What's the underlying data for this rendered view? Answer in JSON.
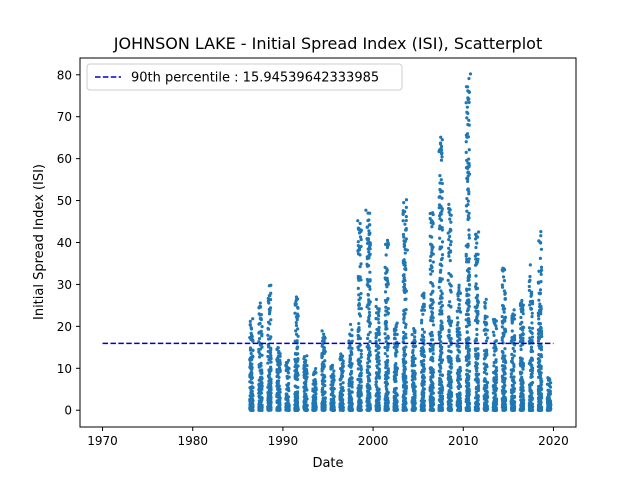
{
  "chart_data": {
    "type": "scatter",
    "title": "JOHNSON LAKE - Initial Spread Index (ISI), Scatterplot",
    "xlabel": "Date",
    "ylabel": "Initial Spread Index (ISI)",
    "xlim": [
      1967.5,
      2022.5
    ],
    "ylim": [
      -4,
      84
    ],
    "x_ticks": [
      1970,
      1980,
      1990,
      2000,
      2010,
      2020
    ],
    "x_tick_labels": [
      "1970",
      "1980",
      "1990",
      "2000",
      "2010",
      "2020"
    ],
    "y_ticks": [
      0,
      10,
      20,
      30,
      40,
      50,
      60,
      70,
      80
    ],
    "y_tick_labels": [
      "0",
      "10",
      "20",
      "30",
      "40",
      "50",
      "60",
      "70",
      "80"
    ],
    "grid": false,
    "legend_position": "upper-left",
    "marker_color": "#1f77b4",
    "reference_line": {
      "label": "90th percentile : 15.94539642333985",
      "value": 15.94539642333985,
      "x_range": [
        1970,
        2020
      ],
      "color": "#0000cc",
      "style": "dashed"
    },
    "seasons": [
      {
        "year": 1986,
        "max": 22
      },
      {
        "year": 1987,
        "max": 26
      },
      {
        "year": 1988,
        "max": 30
      },
      {
        "year": 1989,
        "max": 15
      },
      {
        "year": 1990,
        "max": 12
      },
      {
        "year": 1991,
        "max": 27
      },
      {
        "year": 1992,
        "max": 13
      },
      {
        "year": 1993,
        "max": 10
      },
      {
        "year": 1994,
        "max": 19
      },
      {
        "year": 1995,
        "max": 11
      },
      {
        "year": 1996,
        "max": 14
      },
      {
        "year": 1997,
        "max": 21
      },
      {
        "year": 1998,
        "max": 45
      },
      {
        "year": 1999,
        "max": 48
      },
      {
        "year": 2000,
        "max": 27
      },
      {
        "year": 2001,
        "max": 41
      },
      {
        "year": 2002,
        "max": 23
      },
      {
        "year": 2003,
        "max": 50
      },
      {
        "year": 2004,
        "max": 20
      },
      {
        "year": 2005,
        "max": 28
      },
      {
        "year": 2006,
        "max": 47
      },
      {
        "year": 2007,
        "max": 65
      },
      {
        "year": 2008,
        "max": 49
      },
      {
        "year": 2009,
        "max": 30
      },
      {
        "year": 2010,
        "max": 80
      },
      {
        "year": 2011,
        "max": 42
      },
      {
        "year": 2012,
        "max": 27
      },
      {
        "year": 2013,
        "max": 23
      },
      {
        "year": 2014,
        "max": 34
      },
      {
        "year": 2015,
        "max": 24
      },
      {
        "year": 2016,
        "max": 27
      },
      {
        "year": 2017,
        "max": 35
      },
      {
        "year": 2018,
        "max": 42
      },
      {
        "year": 2019,
        "max": 8
      }
    ],
    "highlight_points": [
      {
        "x": 1988.5,
        "y": 29.7
      },
      {
        "x": 1991.5,
        "y": 27
      },
      {
        "x": 1998.3,
        "y": 45.2
      },
      {
        "x": 1999.2,
        "y": 47.7
      },
      {
        "x": 2001.6,
        "y": 40.5
      },
      {
        "x": 2003.7,
        "y": 50.2
      },
      {
        "x": 2003.8,
        "y": 38.2
      },
      {
        "x": 2006.6,
        "y": 47.1
      },
      {
        "x": 2007.5,
        "y": 65.1
      },
      {
        "x": 2008.4,
        "y": 49.1
      },
      {
        "x": 2010.8,
        "y": 80.2
      },
      {
        "x": 2011.7,
        "y": 42.5
      },
      {
        "x": 2018.6,
        "y": 42.6
      }
    ]
  }
}
